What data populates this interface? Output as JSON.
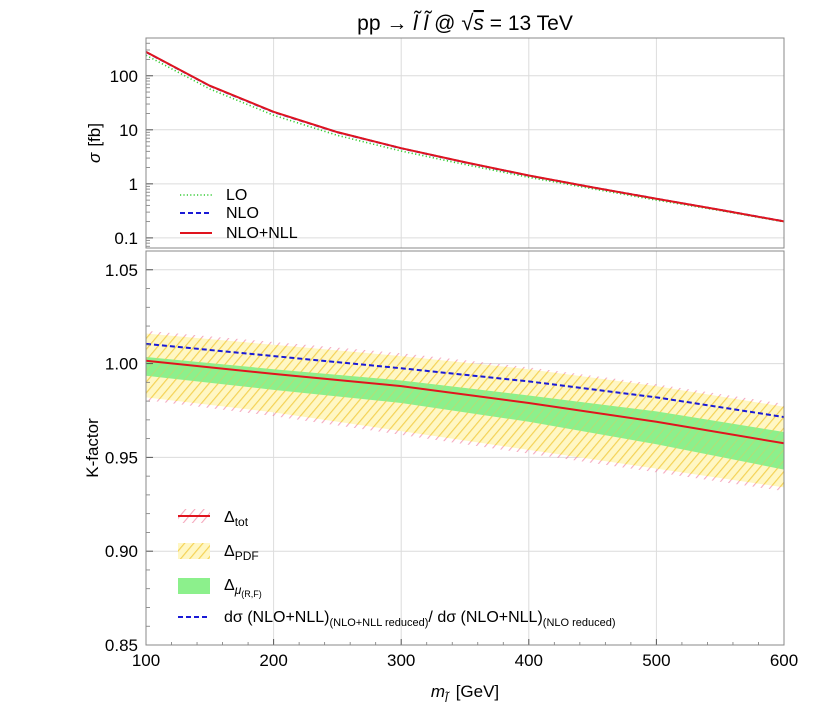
{
  "chart_data": [
    {
      "type": "line",
      "panel": "top",
      "title": "pp → l̃ l̃ @ √s = 13 TeV",
      "title_parts": {
        "process": "pp → ",
        "slepton": "l̃ l̃",
        "at": " @ ",
        "sqrt_s": "s",
        "energy": " = 13 TeV"
      },
      "ylabel": "σ [fb]",
      "ylabel_parts": {
        "symbol": "σ",
        "unit": "[fb]"
      },
      "yscale": "log",
      "ylim": [
        0.065,
        500
      ],
      "xlim": [
        100,
        600
      ],
      "yticks": [
        0.1,
        1,
        10,
        100
      ],
      "ytick_labels": [
        "0.1",
        "1",
        "10",
        "100"
      ],
      "grid": true,
      "legend_position": "bottom-left",
      "x": [
        100,
        150,
        200,
        250,
        300,
        350,
        400,
        450,
        500,
        550,
        600
      ],
      "series": [
        {
          "name": "LO",
          "style": "dotted",
          "color": "#33cc33",
          "values": [
            240,
            57,
            18.6,
            7.9,
            4.05,
            2.28,
            1.32,
            0.81,
            0.5,
            0.32,
            0.198
          ]
        },
        {
          "name": "NLO",
          "style": "dashed",
          "color": "#1a1ad6",
          "values": [
            275,
            65,
            21.3,
            9.0,
            4.55,
            2.5,
            1.42,
            0.86,
            0.53,
            0.33,
            0.202
          ]
        },
        {
          "name": "NLO+NLL",
          "style": "solid",
          "color": "#e0141e",
          "values": [
            277,
            65.5,
            21.5,
            9.05,
            4.57,
            2.51,
            1.43,
            0.86,
            0.53,
            0.33,
            0.202
          ]
        }
      ]
    },
    {
      "type": "area",
      "panel": "bottom",
      "xlabel": "m_l̃ [GeV]",
      "xlabel_parts": {
        "symbol": "m",
        "subscript": "l̃",
        "unit": "[GeV]"
      },
      "ylabel": "K-factor",
      "ylim": [
        0.85,
        1.06
      ],
      "xlim": [
        100,
        600
      ],
      "xticks": [
        100,
        200,
        300,
        400,
        500,
        600
      ],
      "xtick_labels": [
        "100",
        "200",
        "300",
        "400",
        "500",
        "600"
      ],
      "yticks": [
        0.85,
        0.9,
        0.95,
        1.0,
        1.05
      ],
      "ytick_labels": [
        "0.85",
        "0.90",
        "0.95",
        "1.00",
        "1.05"
      ],
      "grid": true,
      "legend_position": "bottom-left",
      "x": [
        100,
        200,
        300,
        400,
        500,
        600
      ],
      "central": [
        1.0015,
        0.9945,
        0.988,
        0.979,
        0.969,
        0.9575
      ],
      "series": [
        {
          "name": "Δtot",
          "style": "hatched band + solid line",
          "color": "#e0141e",
          "lower": [
            0.9805,
            0.972,
            0.962,
            0.952,
            0.942,
            0.932
          ],
          "upper": [
            1.0175,
            1.0115,
            1.0055,
            0.998,
            0.989,
            0.9785
          ]
        },
        {
          "name": "ΔPDF",
          "style": "band",
          "color": "#ffe84d",
          "lower": [
            0.982,
            0.974,
            0.964,
            0.954,
            0.944,
            0.934
          ],
          "upper": [
            1.016,
            1.01,
            1.004,
            0.997,
            0.988,
            0.977
          ]
        },
        {
          "name": "Δμ(R,F)",
          "style": "band",
          "color": "#66e666",
          "lower": [
            0.9935,
            0.986,
            0.979,
            0.969,
            0.957,
            0.9435
          ],
          "upper": [
            1.0035,
            0.997,
            0.991,
            0.983,
            0.9745,
            0.9635
          ]
        },
        {
          "name": "dσ (NLO+NLL)(NLO+NLL reduced)/ dσ (NLO+NLL)(NLO reduced)",
          "style": "dashed",
          "color": "#1a1ad6",
          "values": [
            1.0105,
            1.004,
            0.9975,
            0.9905,
            0.982,
            0.9715
          ]
        }
      ],
      "legend": {
        "tot": {
          "main": "Δ",
          "sub": "tot"
        },
        "pdf": {
          "main": "Δ",
          "sub": "PDF"
        },
        "scale": {
          "main": "Δ",
          "sub": "μ",
          "subsub": "(R,F)"
        },
        "ratio": {
          "a": "dσ (NLO+NLL)",
          "a_sub": "(NLO+NLL reduced)",
          "b": "/ dσ (NLO+NLL)",
          "b_sub": "(NLO reduced)"
        }
      }
    }
  ]
}
